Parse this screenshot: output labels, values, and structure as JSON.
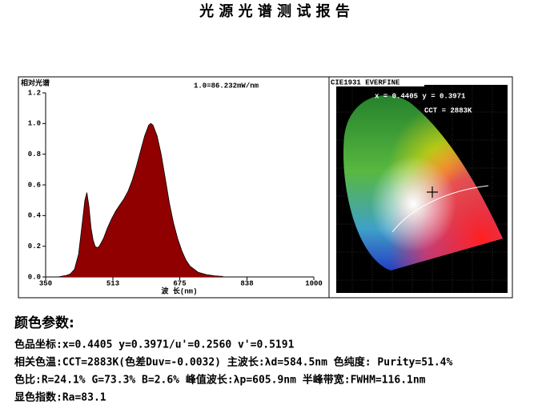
{
  "title": "光 源 光 谱 测 试 报 告",
  "chart_data": {
    "type": "area",
    "y_label": "相对光谱",
    "x_label": "波 长(nm)",
    "annotation": "1.0=86.232mW/nm",
    "x": [
      380,
      390,
      400,
      410,
      420,
      430,
      440,
      445,
      450,
      455,
      460,
      465,
      470,
      475,
      480,
      490,
      500,
      510,
      520,
      530,
      540,
      550,
      560,
      570,
      580,
      590,
      600,
      605,
      610,
      620,
      630,
      640,
      650,
      660,
      670,
      680,
      690,
      700,
      720,
      740,
      760,
      780
    ],
    "values": [
      0,
      0.005,
      0.01,
      0.02,
      0.05,
      0.15,
      0.38,
      0.5,
      0.55,
      0.46,
      0.32,
      0.24,
      0.2,
      0.19,
      0.2,
      0.25,
      0.32,
      0.38,
      0.43,
      0.47,
      0.51,
      0.56,
      0.63,
      0.72,
      0.82,
      0.92,
      0.99,
      1.0,
      0.99,
      0.92,
      0.8,
      0.64,
      0.48,
      0.35,
      0.25,
      0.17,
      0.11,
      0.07,
      0.03,
      0.015,
      0.007,
      0.003
    ],
    "xlim": [
      350,
      1000
    ],
    "xticks": [
      350,
      513,
      675,
      838,
      1000
    ],
    "ylim": [
      0,
      1.2
    ],
    "yticks": [
      {
        "value": 0,
        "label": "0.0"
      },
      0.2,
      0.4,
      0.6,
      0.8,
      {
        "value": 1,
        "label": "1.0"
      },
      1.2
    ]
  },
  "cie": {
    "title": "CIE1931 EVERFINE",
    "coords": "x = 0.4405 y = 0.3971",
    "cct": "CCT = 2883K"
  },
  "parameters": {
    "heading": "颜色参数:",
    "lines": [
      "色品坐标:x=0.4405  y=0.3971/u'=0.2560  v'=0.5191",
      "相关色温:CCT=2883K(色差Duv=-0.0032) 主波长:λd=584.5nm 色纯度: Purity=51.4%",
      "色比:R=24.1% G=73.3% B=2.6%  峰值波长:λp=605.9nm  半峰带宽:FWHM=116.1nm",
      "显色指数:Ra=83.1"
    ]
  }
}
